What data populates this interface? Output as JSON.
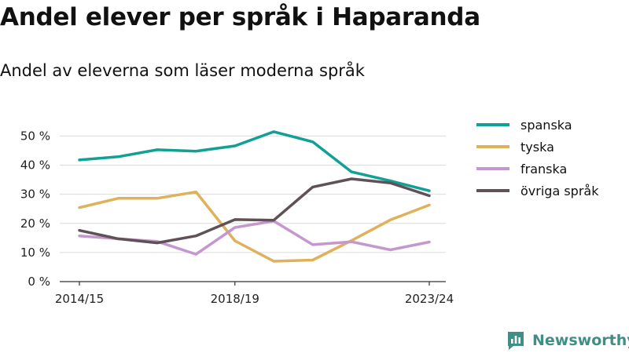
{
  "title": "Andel elever per språk i Haparanda",
  "subtitle": "Andel av eleverna som läser moderna språk",
  "brand": {
    "name": "Newsworthy",
    "icon": "newsworthy-logo-icon",
    "color": "#3f8f86"
  },
  "chart_data": {
    "type": "line",
    "x": [
      "2014/15",
      "2015/16",
      "2016/17",
      "2017/18",
      "2018/19",
      "2019/20",
      "2020/21",
      "2021/22",
      "2022/23",
      "2023/24"
    ],
    "x_tick_labels": [
      "2014/15",
      "",
      "",
      "",
      "2018/19",
      "",
      "",
      "",
      "",
      "2023/24"
    ],
    "y_ticks": [
      0,
      10,
      20,
      30,
      40,
      50
    ],
    "y_tick_labels": [
      "0 %",
      "10 %",
      "20 %",
      "30 %",
      "40 %",
      "50 %"
    ],
    "ylim": [
      0,
      52
    ],
    "grid": "horizontal",
    "legend_position": "right",
    "series": [
      {
        "name": "spanska",
        "color": "#11a095",
        "values": [
          41.8,
          42.9,
          45.3,
          44.8,
          46.6,
          51.5,
          48.0,
          37.7,
          34.6,
          31.2
        ]
      },
      {
        "name": "tyska",
        "color": "#deb15a",
        "values": [
          25.4,
          28.6,
          28.6,
          30.8,
          14.0,
          7.0,
          7.4,
          14.1,
          21.2,
          26.3
        ]
      },
      {
        "name": "franska",
        "color": "#c597cf",
        "values": [
          15.7,
          14.7,
          13.8,
          9.4,
          18.6,
          20.8,
          12.7,
          13.7,
          10.9,
          13.6
        ]
      },
      {
        "name": "övriga språk",
        "color": "#5f5157",
        "values": [
          17.6,
          14.7,
          13.3,
          15.7,
          21.3,
          21.1,
          32.5,
          35.3,
          33.9,
          29.5
        ]
      }
    ]
  }
}
